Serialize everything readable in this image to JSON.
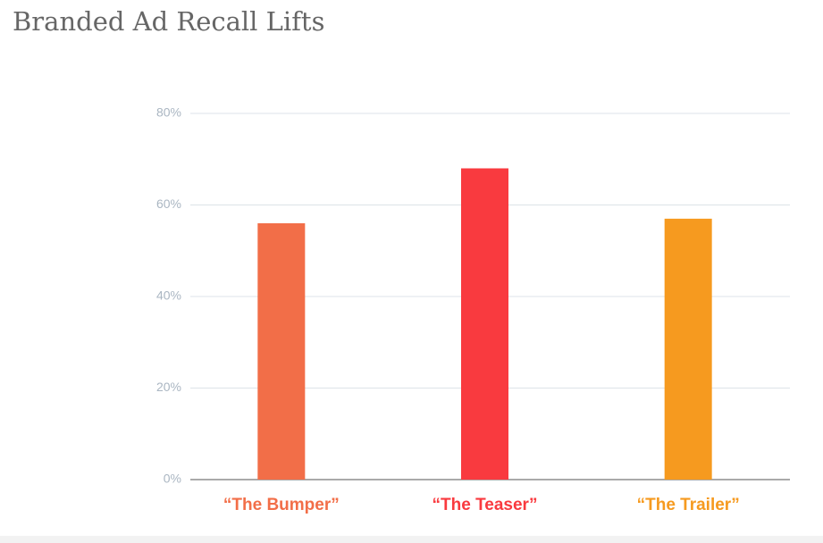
{
  "chart_data": {
    "type": "bar",
    "title": "Branded Ad Recall Lifts",
    "categories": [
      "“The Bumper”",
      "“The Teaser”",
      "“The Trailer”"
    ],
    "values": [
      56,
      68,
      57
    ],
    "colors": [
      "#f26e48",
      "#f93a3f",
      "#f69a1f"
    ],
    "ylim": [
      0,
      80
    ],
    "yticks": [
      {
        "value": 0,
        "label": "0%"
      },
      {
        "value": 20,
        "label": "20%"
      },
      {
        "value": 40,
        "label": "40%"
      },
      {
        "value": 60,
        "label": "60%"
      },
      {
        "value": 80,
        "label": "80%"
      }
    ],
    "grid": true
  }
}
